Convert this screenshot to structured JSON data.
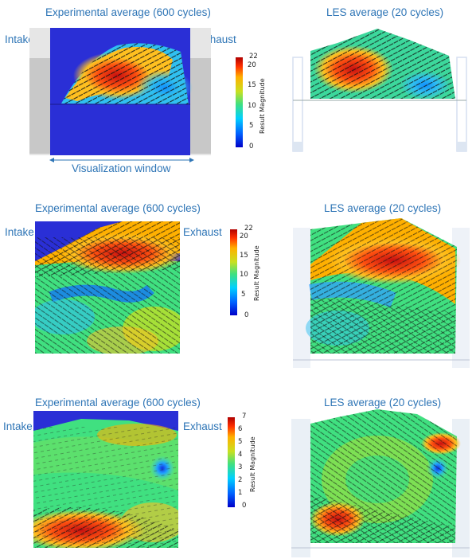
{
  "rows": [
    {
      "exp_title": "Experimental average (600 cycles)",
      "les_title": "LES average (20 cycles)",
      "intake": "Intake",
      "exhaust": "Exhaust",
      "window_label": "Visualization window",
      "colorbar": {
        "title": "Result Magnitude",
        "ticks": [
          "22",
          "20",
          "15",
          "10",
          "5",
          "0"
        ]
      }
    },
    {
      "exp_title": "Experimental average (600 cycles)",
      "les_title": "LES average (20 cycles)",
      "intake": "Intake",
      "exhaust": "Exhaust",
      "colorbar": {
        "title": "Result Magnitude",
        "ticks": [
          "22",
          "20",
          "15",
          "10",
          "5",
          "0"
        ]
      }
    },
    {
      "exp_title": "Experimental average (600 cycles)",
      "les_title": "LES average (20 cycles)",
      "intake": "Intake",
      "exhaust": "Exhaust",
      "colorbar": {
        "title": "Result Magnitude",
        "ticks": [
          "7",
          "6",
          "5",
          "4",
          "3",
          "2",
          "1",
          "0"
        ]
      }
    }
  ],
  "colors": {
    "title_blue": "#2e75b6",
    "background_blue": "#2a2fd6",
    "jet": [
      "#0000c8",
      "#0060ff",
      "#00d0ff",
      "#40e080",
      "#c8e020",
      "#ffb000",
      "#ff3000",
      "#b00000"
    ]
  }
}
